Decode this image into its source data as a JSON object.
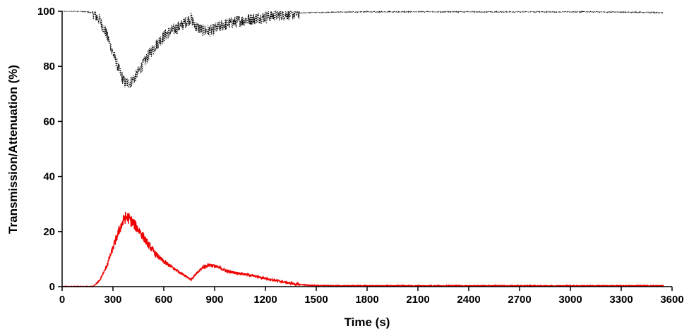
{
  "chart_data": {
    "type": "line",
    "title": "",
    "xlabel": "Time (s)",
    "ylabel": "Transmission/Attenuation (%)",
    "xlim": [
      0,
      3600
    ],
    "ylim": [
      0,
      100
    ],
    "x_ticks": [
      0,
      300,
      600,
      900,
      1200,
      1500,
      1800,
      2100,
      2400,
      2700,
      3000,
      3300,
      3600
    ],
    "y_ticks": [
      0,
      20,
      40,
      60,
      80,
      100
    ],
    "x_tick_labels": [
      "0",
      "300",
      "600",
      "900",
      "1200",
      "1500",
      "1800",
      "2100",
      "2400",
      "2700",
      "3000",
      "3300",
      "3600"
    ],
    "y_tick_labels": [
      "0",
      "20",
      "40",
      "60",
      "80",
      "100"
    ],
    "grid": false,
    "legend": "none",
    "series": [
      {
        "color": "#000000",
        "style": "dotted",
        "x": [
          0,
          100,
          180,
          220,
          260,
          300,
          340,
          370,
          400,
          430,
          470,
          520,
          570,
          620,
          680,
          730,
          760,
          790,
          830,
          880,
          950,
          1050,
          1150,
          1250,
          1350,
          1450,
          1600,
          1800,
          2100,
          2400,
          2700,
          3000,
          3300,
          3550
        ],
        "y": [
          100,
          100,
          99.5,
          97,
          92,
          85,
          78,
          74,
          74,
          76,
          80,
          85,
          89,
          92,
          94,
          96,
          97.5,
          94.5,
          93,
          93,
          95,
          96.5,
          97.5,
          98.5,
          99,
          99.5,
          99.7,
          99.8,
          99.8,
          99.8,
          99.8,
          99.8,
          99.7,
          99.5
        ]
      },
      {
        "color": "#ee0000",
        "style": "solid",
        "x": [
          0,
          100,
          180,
          220,
          260,
          300,
          340,
          370,
          390,
          420,
          460,
          500,
          550,
          600,
          650,
          700,
          740,
          760,
          790,
          830,
          870,
          920,
          980,
          1050,
          1120,
          1200,
          1280,
          1350,
          1400,
          1450,
          1500,
          1600,
          1800,
          2100,
          2400,
          2700,
          3000,
          3300,
          3550
        ],
        "y": [
          0,
          0,
          0,
          2,
          7,
          14,
          21,
          25,
          25,
          23,
          20,
          16,
          12,
          9,
          7,
          5,
          3.5,
          2.5,
          4.5,
          7,
          8,
          7,
          5.5,
          4.8,
          4,
          3,
          2,
          1.2,
          0.8,
          0.5,
          0.4,
          0.3,
          0.3,
          0.3,
          0.3,
          0.3,
          0.3,
          0.3,
          0.3
        ]
      }
    ]
  }
}
